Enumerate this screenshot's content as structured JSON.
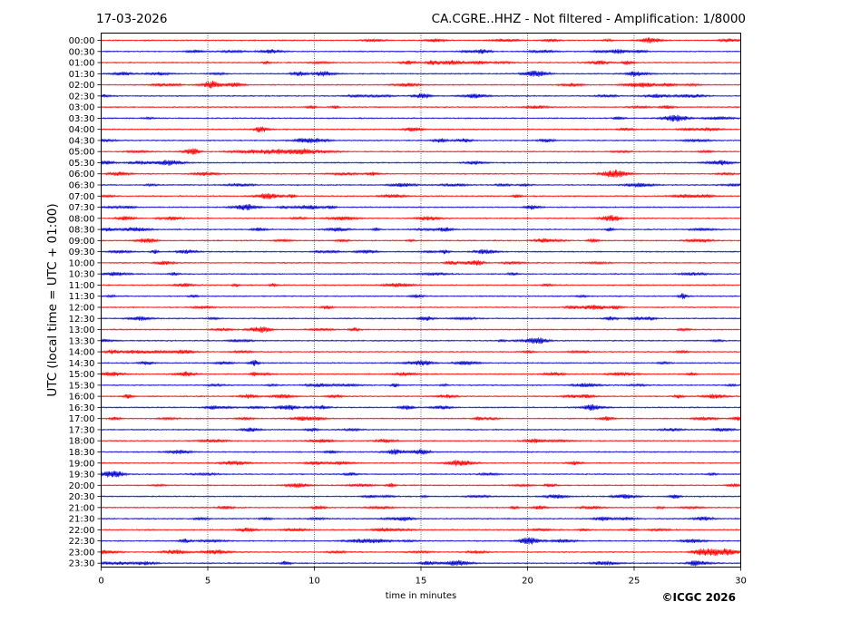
{
  "header": {
    "date": "17-03-2026",
    "title": "CA.CGRE..HHZ - Not filtered - Amplification: 1/8000"
  },
  "copyright": "©ICGC 2026",
  "colors": {
    "trace_even": "#ff0000",
    "trace_odd": "#0000cc",
    "grid": "#000000",
    "axis": "#000000"
  },
  "chart_data": {
    "type": "line",
    "title": "CA.CGRE..HHZ - Not filtered - Amplification: 1/8000",
    "xlabel": "time in minutes",
    "ylabel": "UTC (local time = UTC + 01:00)",
    "xlim": [
      0,
      30
    ],
    "xticks": [
      "0",
      "5",
      "10",
      "15",
      "20",
      "25",
      "30"
    ],
    "grid": "vertical dotted",
    "rows": [
      "00:00",
      "00:30",
      "01:00",
      "01:30",
      "02:00",
      "02:30",
      "03:00",
      "03:30",
      "04:00",
      "04:30",
      "05:00",
      "05:30",
      "06:00",
      "06:30",
      "07:00",
      "07:30",
      "08:00",
      "08:30",
      "09:00",
      "09:30",
      "10:00",
      "10:30",
      "11:00",
      "11:30",
      "12:00",
      "12:30",
      "13:00",
      "13:30",
      "14:00",
      "14:30",
      "15:00",
      "15:30",
      "16:00",
      "16:30",
      "17:00",
      "17:30",
      "18:00",
      "18:30",
      "19:00",
      "19:30",
      "20:00",
      "20:30",
      "21:00",
      "21:30",
      "22:00",
      "22:30",
      "23:00",
      "23:30"
    ],
    "row_colors": "alternating red / blue",
    "events": [
      {
        "row": "05:00",
        "start_min": 5.5,
        "end_min": 11.5,
        "amplitude": 3
      },
      {
        "row": "04:30",
        "start_min": 9.0,
        "end_min": 11.0,
        "amplitude": 2
      },
      {
        "row": "23:00",
        "start_min": 27.5,
        "end_min": 29.0,
        "amplitude": 3.5
      },
      {
        "row": "10:00",
        "start_min": 16.0,
        "end_min": 16.8,
        "amplitude": 2.5
      },
      {
        "row": "01:30",
        "start_min": 8.8,
        "end_min": 9.8,
        "amplitude": 2.5
      },
      {
        "row": "02:00",
        "start_min": 4.8,
        "end_min": 5.6,
        "amplitude": 2
      },
      {
        "row": "16:30",
        "start_min": 22.6,
        "end_min": 23.4,
        "amplitude": 2
      }
    ]
  }
}
